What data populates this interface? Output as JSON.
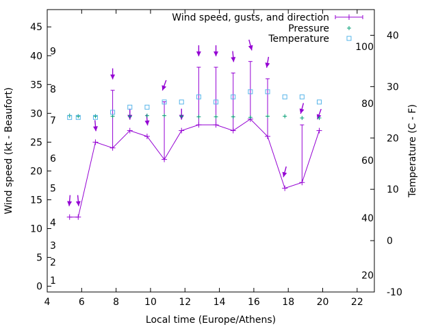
{
  "chart_data": {
    "type": "line",
    "title": "",
    "xlabel": "Local time (Europe/Athens)",
    "ylabel": "Wind speed (kt - Beaufort)",
    "y2label": "Temperature (C - F)",
    "xlim": [
      4,
      23
    ],
    "ylim": [
      -1,
      48
    ],
    "y2lim": [
      -10,
      45
    ],
    "grid": false,
    "legend_position": "top-right",
    "x_ticks": [
      "4",
      "6",
      "8",
      "10",
      "12",
      "14",
      "16",
      "18",
      "20",
      "22"
    ],
    "y_ticks": [
      "0",
      "5",
      "10",
      "15",
      "20",
      "25",
      "30",
      "35",
      "40",
      "45"
    ],
    "y2_ticks": [
      "-10",
      "0",
      "10",
      "20",
      "30",
      "40"
    ],
    "beaufort_labels": [
      {
        "text": "1",
        "y": 1.0
      },
      {
        "text": "2",
        "y": 4.2
      },
      {
        "text": "3",
        "y": 7.1
      },
      {
        "text": "4",
        "y": 11.1
      },
      {
        "text": "5",
        "y": 17.0
      },
      {
        "text": "6",
        "y": 22.2
      },
      {
        "text": "7",
        "y": 28.8
      },
      {
        "text": "8",
        "y": 34.2
      },
      {
        "text": "9",
        "y": 40.8
      }
    ],
    "fahrenheit_labels": [
      {
        "text": "20",
        "y2": -6.7
      },
      {
        "text": "40",
        "y2": 4.4
      },
      {
        "text": "60",
        "y2": 15.6
      },
      {
        "text": "80",
        "y2": 26.7
      },
      {
        "text": "100",
        "y2": 37.8
      }
    ],
    "series": [
      {
        "name": "Wind speed, gusts, and direction",
        "color": "#9400d3",
        "x": [
          5.3,
          5.8,
          6.8,
          7.8,
          8.8,
          9.8,
          10.8,
          11.8,
          12.8,
          13.8,
          14.8,
          15.8,
          16.8,
          17.8,
          18.8,
          19.8
        ],
        "speed": [
          12,
          12,
          25,
          24,
          27,
          26,
          22,
          27,
          28,
          28,
          27,
          29,
          26,
          17,
          18,
          27
        ],
        "gust": [
          12,
          12,
          25,
          34,
          27,
          26,
          32,
          27,
          38,
          38,
          37,
          39,
          36,
          17,
          28,
          27
        ],
        "direction_deg": [
          5,
          355,
          355,
          360,
          360,
          355,
          20,
          360,
          360,
          360,
          355,
          345,
          10,
          15,
          15,
          20
        ]
      },
      {
        "name": "Pressure",
        "color": "#009e73",
        "x": [
          5.3,
          5.8,
          6.8,
          7.8,
          8.8,
          9.8,
          10.8,
          11.8,
          12.8,
          13.8,
          14.8,
          15.8,
          16.8,
          17.8,
          18.8,
          19.8
        ],
        "y": [
          29.6,
          29.5,
          29.5,
          29.5,
          29.5,
          29.6,
          29.6,
          29.5,
          29.4,
          29.4,
          29.4,
          29.3,
          29.5,
          29.5,
          29.2,
          29.2
        ]
      },
      {
        "name": "Temperature",
        "color": "#56b4e9",
        "x": [
          5.3,
          5.8,
          6.8,
          7.8,
          8.8,
          9.8,
          10.8,
          11.8,
          12.8,
          13.8,
          14.8,
          15.8,
          16.8,
          17.8,
          18.8,
          19.8
        ],
        "y2": [
          24,
          24,
          24,
          25,
          26,
          26,
          27,
          27,
          28,
          27,
          28,
          29,
          29,
          28,
          28,
          27
        ]
      }
    ]
  }
}
